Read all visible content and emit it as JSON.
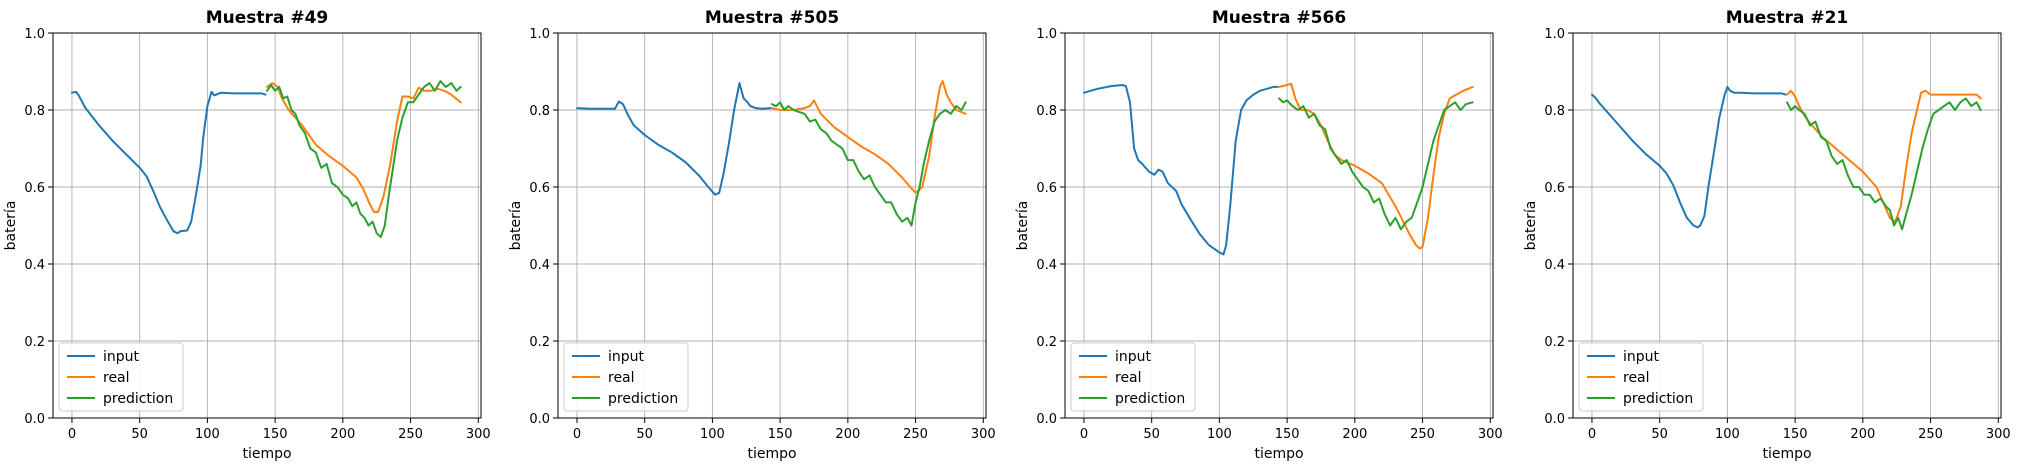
{
  "chart_data": [
    {
      "type": "line",
      "title": "Muestra #49",
      "xlabel": "tiempo",
      "ylabel": "batería",
      "xlim": [
        -14,
        302
      ],
      "ylim": [
        0,
        1.0
      ],
      "xticks": [
        0,
        50,
        100,
        150,
        200,
        250,
        300
      ],
      "yticks": [
        0.0,
        0.2,
        0.4,
        0.6,
        0.8,
        1.0
      ],
      "grid": true,
      "legend": "lower-left",
      "series": [
        {
          "name": "input",
          "color": "#1f77b4",
          "x": [
            0,
            3,
            5,
            10,
            20,
            30,
            40,
            50,
            55,
            60,
            65,
            70,
            75,
            78,
            80,
            85,
            88,
            92,
            95,
            97,
            100,
            103,
            105,
            110,
            120,
            130,
            140,
            143
          ],
          "y": [
            0.845,
            0.847,
            0.838,
            0.805,
            0.76,
            0.72,
            0.685,
            0.65,
            0.628,
            0.59,
            0.548,
            0.515,
            0.485,
            0.48,
            0.485,
            0.487,
            0.51,
            0.59,
            0.655,
            0.73,
            0.81,
            0.847,
            0.838,
            0.845,
            0.843,
            0.843,
            0.843,
            0.84
          ]
        },
        {
          "name": "real",
          "color": "#ff7f0e",
          "x": [
            144,
            148,
            152,
            155,
            160,
            170,
            180,
            190,
            200,
            210,
            215,
            220,
            223,
            226,
            230,
            235,
            240,
            244,
            248,
            252,
            256,
            260,
            265,
            270,
            275,
            280,
            287
          ],
          "y": [
            0.86,
            0.87,
            0.86,
            0.83,
            0.8,
            0.76,
            0.71,
            0.68,
            0.655,
            0.625,
            0.595,
            0.555,
            0.535,
            0.535,
            0.575,
            0.66,
            0.77,
            0.835,
            0.835,
            0.83,
            0.858,
            0.85,
            0.85,
            0.855,
            0.85,
            0.84,
            0.82
          ]
        },
        {
          "name": "prediction",
          "color": "#2ca02c",
          "x": [
            144,
            147,
            150,
            153,
            156,
            159,
            162,
            165,
            168,
            172,
            176,
            180,
            184,
            188,
            192,
            196,
            200,
            204,
            207,
            210,
            213,
            216,
            219,
            222,
            225,
            228,
            231,
            234,
            237,
            240,
            244,
            248,
            252,
            256,
            260,
            264,
            268,
            272,
            276,
            280,
            284,
            287
          ],
          "y": [
            0.85,
            0.865,
            0.85,
            0.86,
            0.83,
            0.835,
            0.8,
            0.79,
            0.76,
            0.74,
            0.7,
            0.69,
            0.65,
            0.66,
            0.61,
            0.6,
            0.58,
            0.57,
            0.55,
            0.56,
            0.53,
            0.52,
            0.5,
            0.51,
            0.48,
            0.47,
            0.5,
            0.58,
            0.65,
            0.72,
            0.78,
            0.82,
            0.82,
            0.84,
            0.86,
            0.87,
            0.85,
            0.875,
            0.86,
            0.87,
            0.85,
            0.86
          ]
        }
      ]
    },
    {
      "type": "line",
      "title": "Muestra #505",
      "xlabel": "tiempo",
      "ylabel": "batería",
      "xlim": [
        -14,
        302
      ],
      "ylim": [
        0,
        1.0
      ],
      "xticks": [
        0,
        50,
        100,
        150,
        200,
        250,
        300
      ],
      "yticks": [
        0.0,
        0.2,
        0.4,
        0.6,
        0.8,
        1.0
      ],
      "grid": true,
      "legend": "lower-left",
      "series": [
        {
          "name": "input",
          "color": "#1f77b4",
          "x": [
            0,
            10,
            20,
            28,
            31,
            34,
            38,
            42,
            50,
            60,
            70,
            80,
            90,
            97,
            102,
            105,
            108,
            112,
            116,
            120,
            123,
            126,
            128,
            132,
            137,
            143
          ],
          "y": [
            0.805,
            0.803,
            0.803,
            0.803,
            0.822,
            0.815,
            0.785,
            0.76,
            0.735,
            0.71,
            0.69,
            0.665,
            0.63,
            0.6,
            0.58,
            0.585,
            0.63,
            0.71,
            0.8,
            0.87,
            0.83,
            0.82,
            0.81,
            0.805,
            0.803,
            0.805
          ]
        },
        {
          "name": "real",
          "color": "#ff7f0e",
          "x": [
            144,
            150,
            160,
            168,
            172,
            175,
            180,
            190,
            200,
            210,
            220,
            230,
            240,
            246,
            250,
            255,
            260,
            264,
            268,
            270,
            273,
            276,
            280,
            287
          ],
          "y": [
            0.805,
            0.8,
            0.8,
            0.805,
            0.81,
            0.825,
            0.79,
            0.755,
            0.73,
            0.705,
            0.685,
            0.66,
            0.625,
            0.6,
            0.585,
            0.6,
            0.68,
            0.78,
            0.86,
            0.875,
            0.84,
            0.82,
            0.8,
            0.79
          ]
        },
        {
          "name": "prediction",
          "color": "#2ca02c",
          "x": [
            144,
            147,
            150,
            153,
            156,
            160,
            164,
            168,
            172,
            176,
            180,
            184,
            188,
            192,
            196,
            200,
            204,
            208,
            212,
            216,
            220,
            224,
            228,
            232,
            236,
            240,
            244,
            247,
            250,
            253,
            256,
            260,
            264,
            268,
            272,
            276,
            280,
            284,
            287
          ],
          "y": [
            0.815,
            0.81,
            0.82,
            0.8,
            0.81,
            0.8,
            0.795,
            0.79,
            0.77,
            0.775,
            0.75,
            0.74,
            0.72,
            0.71,
            0.7,
            0.67,
            0.67,
            0.64,
            0.62,
            0.63,
            0.6,
            0.58,
            0.56,
            0.56,
            0.53,
            0.51,
            0.52,
            0.5,
            0.56,
            0.6,
            0.66,
            0.72,
            0.77,
            0.79,
            0.8,
            0.79,
            0.81,
            0.8,
            0.82
          ]
        }
      ]
    },
    {
      "type": "line",
      "title": "Muestra #566",
      "xlabel": "tiempo",
      "ylabel": "batería",
      "xlim": [
        -14,
        302
      ],
      "ylim": [
        0,
        1.0
      ],
      "xticks": [
        0,
        50,
        100,
        150,
        200,
        250,
        300
      ],
      "yticks": [
        0.0,
        0.2,
        0.4,
        0.6,
        0.8,
        1.0
      ],
      "grid": true,
      "legend": "lower-left",
      "series": [
        {
          "name": "input",
          "color": "#1f77b4",
          "x": [
            0,
            10,
            20,
            28,
            31,
            34,
            37,
            40,
            43,
            48,
            52,
            55,
            58,
            62,
            68,
            72,
            78,
            85,
            92,
            100,
            103,
            105,
            108,
            112,
            116,
            120,
            125,
            130,
            140,
            143
          ],
          "y": [
            0.845,
            0.855,
            0.862,
            0.865,
            0.862,
            0.82,
            0.7,
            0.67,
            0.66,
            0.64,
            0.632,
            0.645,
            0.64,
            0.61,
            0.59,
            0.555,
            0.52,
            0.48,
            0.45,
            0.43,
            0.425,
            0.45,
            0.55,
            0.72,
            0.8,
            0.825,
            0.84,
            0.85,
            0.86,
            0.86
          ]
        },
        {
          "name": "real",
          "color": "#ff7f0e",
          "x": [
            144,
            150,
            153,
            156,
            160,
            165,
            170,
            175,
            180,
            185,
            190,
            200,
            210,
            220,
            230,
            240,
            245,
            248,
            250,
            254,
            258,
            262,
            266,
            270,
            280,
            287
          ],
          "y": [
            0.86,
            0.865,
            0.868,
            0.83,
            0.8,
            0.8,
            0.79,
            0.76,
            0.72,
            0.685,
            0.67,
            0.655,
            0.635,
            0.61,
            0.55,
            0.48,
            0.45,
            0.44,
            0.445,
            0.52,
            0.63,
            0.73,
            0.79,
            0.83,
            0.85,
            0.86
          ]
        },
        {
          "name": "prediction",
          "color": "#2ca02c",
          "x": [
            144,
            147,
            150,
            154,
            158,
            162,
            166,
            170,
            174,
            178,
            182,
            186,
            190,
            194,
            198,
            202,
            206,
            210,
            214,
            218,
            222,
            226,
            230,
            234,
            238,
            242,
            246,
            250,
            254,
            258,
            262,
            266,
            270,
            274,
            278,
            282,
            287
          ],
          "y": [
            0.83,
            0.82,
            0.825,
            0.81,
            0.8,
            0.81,
            0.78,
            0.79,
            0.76,
            0.75,
            0.7,
            0.68,
            0.66,
            0.67,
            0.64,
            0.62,
            0.6,
            0.59,
            0.56,
            0.57,
            0.53,
            0.5,
            0.52,
            0.49,
            0.51,
            0.52,
            0.56,
            0.6,
            0.66,
            0.72,
            0.76,
            0.8,
            0.81,
            0.82,
            0.8,
            0.815,
            0.82
          ]
        }
      ]
    },
    {
      "type": "line",
      "title": "Muestra #21",
      "xlabel": "tiempo",
      "ylabel": "batería",
      "xlim": [
        -14,
        302
      ],
      "ylim": [
        0,
        1.0
      ],
      "xticks": [
        0,
        50,
        100,
        150,
        200,
        250,
        300
      ],
      "yticks": [
        0.0,
        0.2,
        0.4,
        0.6,
        0.8,
        1.0
      ],
      "grid": true,
      "legend": "lower-left",
      "series": [
        {
          "name": "input",
          "color": "#1f77b4",
          "x": [
            0,
            3,
            5,
            10,
            20,
            30,
            40,
            50,
            55,
            60,
            65,
            70,
            75,
            78,
            80,
            83,
            86,
            90,
            94,
            98,
            100,
            102,
            105,
            110,
            120,
            130,
            140,
            143
          ],
          "y": [
            0.84,
            0.83,
            0.82,
            0.8,
            0.76,
            0.72,
            0.685,
            0.655,
            0.635,
            0.605,
            0.56,
            0.52,
            0.5,
            0.495,
            0.5,
            0.525,
            0.6,
            0.69,
            0.78,
            0.84,
            0.86,
            0.85,
            0.845,
            0.845,
            0.843,
            0.843,
            0.843,
            0.84
          ]
        },
        {
          "name": "real",
          "color": "#ff7f0e",
          "x": [
            144,
            147,
            150,
            153,
            156,
            160,
            170,
            180,
            190,
            200,
            210,
            215,
            220,
            224,
            228,
            232,
            236,
            240,
            243,
            246,
            250,
            255,
            260,
            270,
            280,
            284,
            287
          ],
          "y": [
            0.84,
            0.85,
            0.835,
            0.81,
            0.79,
            0.77,
            0.73,
            0.7,
            0.67,
            0.64,
            0.6,
            0.56,
            0.52,
            0.51,
            0.55,
            0.65,
            0.74,
            0.8,
            0.845,
            0.85,
            0.84,
            0.84,
            0.84,
            0.84,
            0.84,
            0.84,
            0.83
          ]
        },
        {
          "name": "prediction",
          "color": "#2ca02c",
          "x": [
            144,
            147,
            150,
            153,
            157,
            161,
            165,
            169,
            173,
            177,
            181,
            185,
            189,
            193,
            197,
            201,
            205,
            209,
            213,
            217,
            220,
            223,
            226,
            229,
            232,
            236,
            240,
            244,
            248,
            252,
            256,
            260,
            264,
            268,
            272,
            276,
            280,
            284,
            287
          ],
          "y": [
            0.82,
            0.8,
            0.81,
            0.8,
            0.79,
            0.76,
            0.77,
            0.73,
            0.72,
            0.68,
            0.66,
            0.67,
            0.63,
            0.6,
            0.6,
            0.58,
            0.58,
            0.56,
            0.57,
            0.55,
            0.54,
            0.5,
            0.52,
            0.49,
            0.53,
            0.58,
            0.64,
            0.7,
            0.75,
            0.79,
            0.8,
            0.81,
            0.82,
            0.8,
            0.82,
            0.83,
            0.81,
            0.82,
            0.8
          ]
        }
      ]
    }
  ]
}
